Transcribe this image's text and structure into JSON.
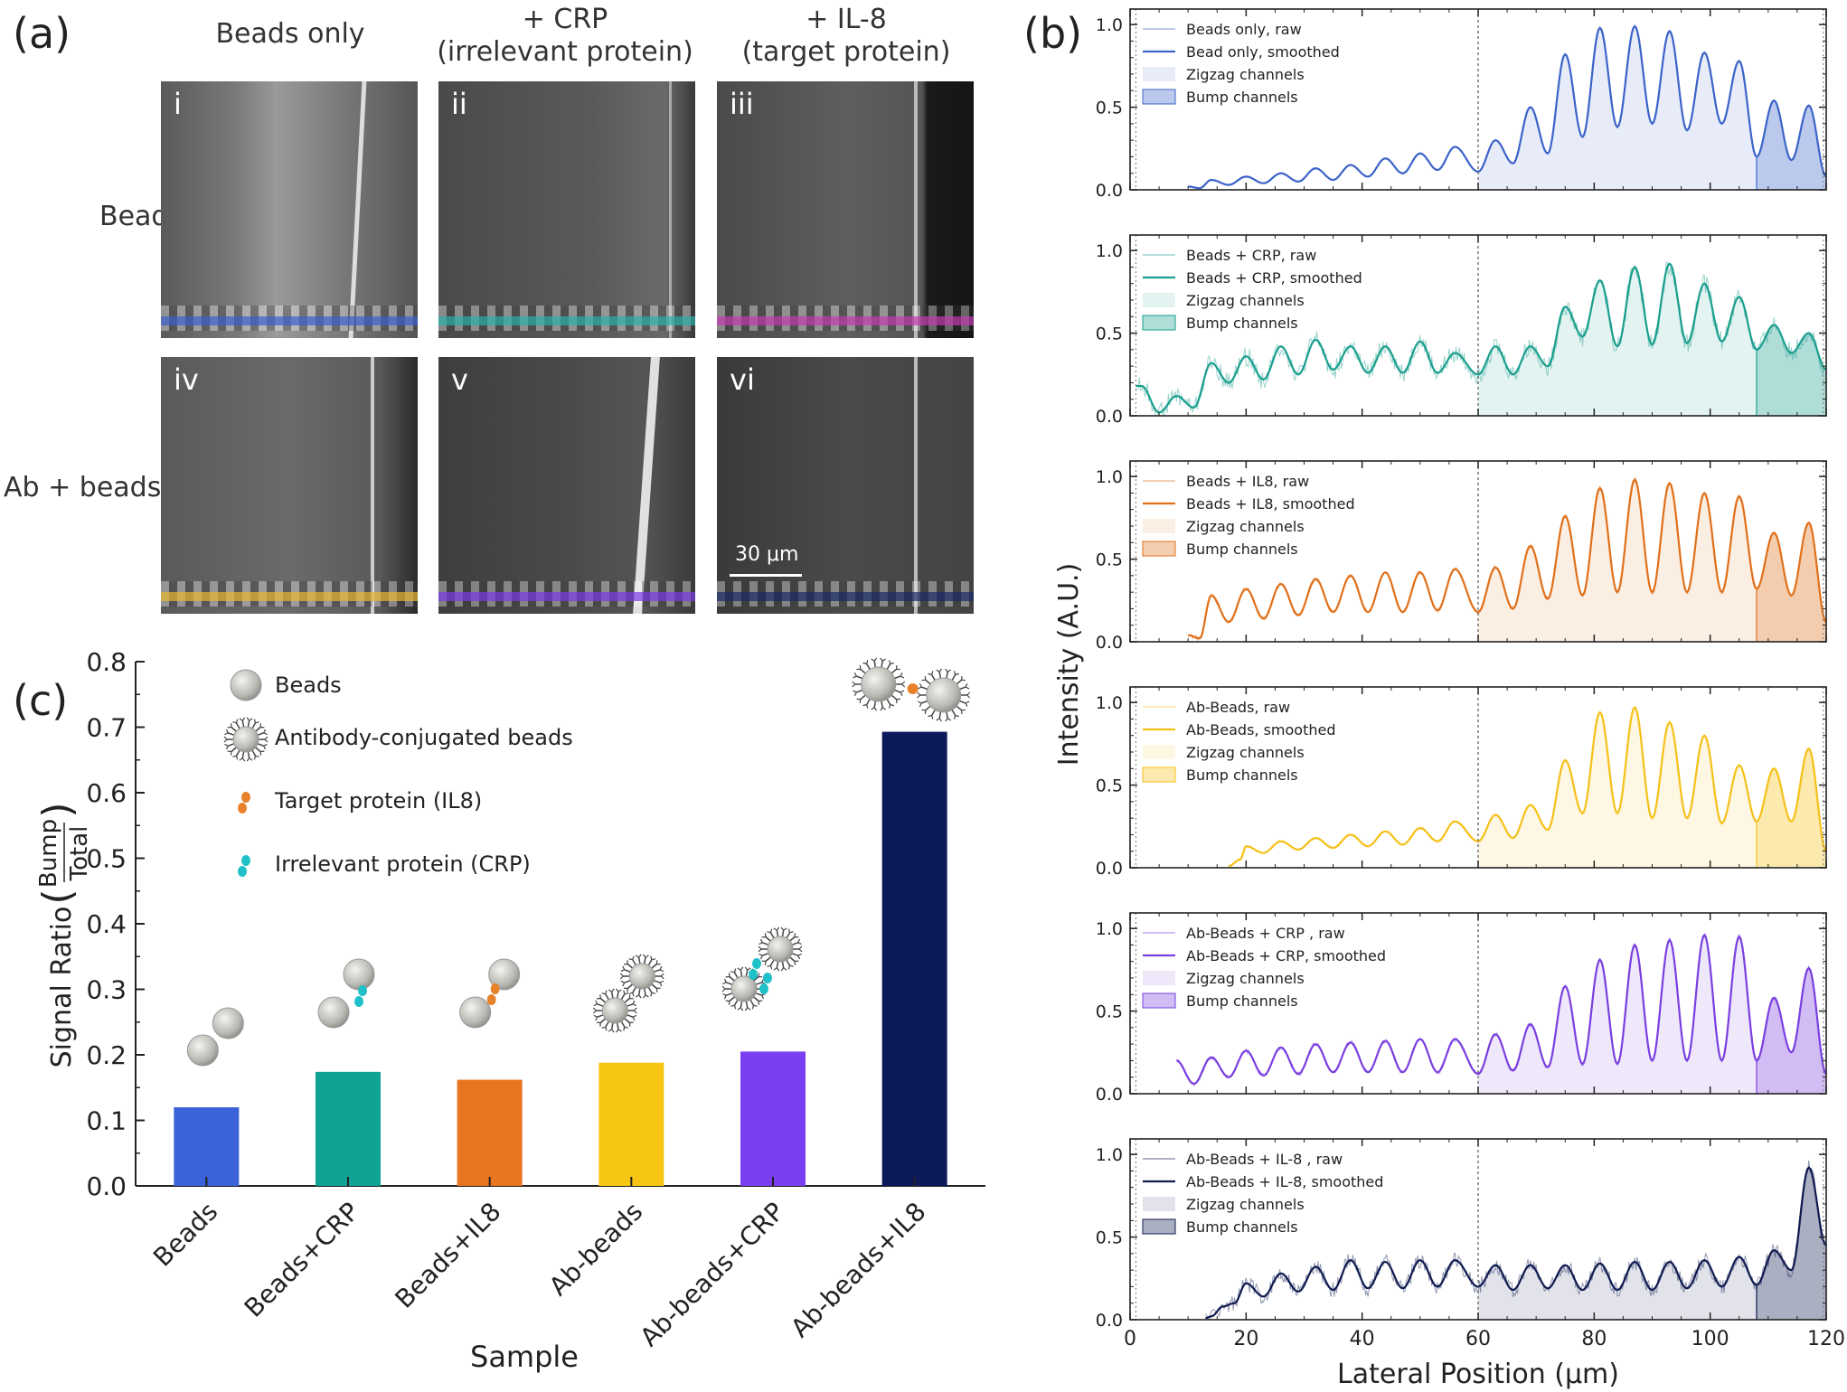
{
  "panel_labels": {
    "a": "(a)",
    "b": "(b)",
    "c": "(c)"
  },
  "panel_a": {
    "column_headers": [
      "Beads only",
      "+ CRP\n(irrelevant protein)",
      "+ IL-8\n(target protein)"
    ],
    "row_headers": [
      "Beads",
      "Ab + beads"
    ],
    "images": [
      {
        "label": "i",
        "stripe_color": "#3a5fcd"
      },
      {
        "label": "ii",
        "stripe_color": "#2ab0a8"
      },
      {
        "label": "iii",
        "stripe_color": "#c23ab0"
      },
      {
        "label": "iv",
        "stripe_color": "#e8b830"
      },
      {
        "label": "v",
        "stripe_color": "#7a3ae8"
      },
      {
        "label": "vi",
        "stripe_color": "#1a2a6a"
      }
    ],
    "scale_bar": "30 μm"
  },
  "chart_data": [
    {
      "type": "bar",
      "panel": "c",
      "categories": [
        "Beads",
        "Beads+CRP",
        "Beads+IL8",
        "Ab-beads",
        "Ab-beads+CRP",
        "Ab-beads+IL8"
      ],
      "values": [
        0.12,
        0.174,
        0.162,
        0.188,
        0.205,
        0.693
      ],
      "colors": [
        "#3b63d9",
        "#0fa396",
        "#e87520",
        "#f7c514",
        "#7b3ff2",
        "#0c1a5c"
      ],
      "xlabel": "Sample",
      "ylabel": "Signal Ratio",
      "ylabel_frac_num": "Bump",
      "ylabel_frac_den": "Total",
      "ylim": [
        0,
        0.8
      ],
      "yticks": [
        "0.0",
        "0.1",
        "0.2",
        "0.3",
        "0.4",
        "0.5",
        "0.6",
        "0.7",
        "0.8"
      ],
      "legend": [
        {
          "icon": "bead",
          "label": "Beads"
        },
        {
          "icon": "ab-bead",
          "label": "Antibody-conjugated beads"
        },
        {
          "icon": "target-protein",
          "label": "Target protein (IL8)",
          "color": "#e8822a"
        },
        {
          "icon": "irrelevant-protein",
          "label": "Irrelevant protein (CRP)",
          "color": "#1fc0c8"
        }
      ]
    },
    {
      "type": "line",
      "panel": "b",
      "xlabel": "Lateral Position (μm)",
      "ylabel": "Intensity (A.U.)",
      "xlim": [
        0,
        120
      ],
      "ylim": [
        0,
        1.05
      ],
      "xticks": [
        "0",
        "20",
        "40",
        "60",
        "80",
        "100",
        "120"
      ],
      "yticks": [
        "0.0",
        "0.5",
        "1.0"
      ],
      "divider_x": 60,
      "bump_start_x": 108,
      "series": [
        {
          "raw_label": "Beads only, raw",
          "smooth_label": "Bead only, smoothed",
          "zigzag_label": "Zigzag channels",
          "bump_label": "Bump channels",
          "color": "#3b63c8",
          "noise": 0.005,
          "start": 10,
          "peaks": [
            [
              10,
              0.02
            ],
            [
              14,
              0.06
            ],
            [
              20,
              0.08
            ],
            [
              26,
              0.1
            ],
            [
              32,
              0.13
            ],
            [
              38,
              0.15
            ],
            [
              44,
              0.19
            ],
            [
              50,
              0.22
            ],
            [
              56,
              0.26
            ],
            [
              63,
              0.3
            ],
            [
              69,
              0.5
            ],
            [
              75,
              0.82
            ],
            [
              81,
              0.98
            ],
            [
              87,
              0.99
            ],
            [
              93,
              0.96
            ],
            [
              99,
              0.83
            ],
            [
              105,
              0.78
            ],
            [
              111,
              0.54
            ],
            [
              117,
              0.51
            ]
          ],
          "valleys": [
            [
              12,
              0.01
            ],
            [
              17,
              0.03
            ],
            [
              23,
              0.04
            ],
            [
              29,
              0.05
            ],
            [
              35,
              0.06
            ],
            [
              41,
              0.08
            ],
            [
              47,
              0.1
            ],
            [
              53,
              0.12
            ],
            [
              60,
              0.11
            ],
            [
              66,
              0.16
            ],
            [
              72,
              0.22
            ],
            [
              78,
              0.32
            ],
            [
              84,
              0.38
            ],
            [
              90,
              0.4
            ],
            [
              96,
              0.36
            ],
            [
              102,
              0.4
            ],
            [
              108,
              0.2
            ],
            [
              114,
              0.18
            ],
            [
              120,
              0.08
            ]
          ]
        },
        {
          "raw_label": "Beads + CRP, raw",
          "smooth_label": "Beads + CRP, smoothed",
          "zigzag_label": "Zigzag channels",
          "bump_label": "Bump channels",
          "color": "#1a9e8e",
          "noise": 0.06,
          "start": 1,
          "peaks": [
            [
              2,
              0.18
            ],
            [
              8,
              0.12
            ],
            [
              14,
              0.32
            ],
            [
              20,
              0.36
            ],
            [
              26,
              0.42
            ],
            [
              32,
              0.46
            ],
            [
              38,
              0.42
            ],
            [
              44,
              0.42
            ],
            [
              50,
              0.45
            ],
            [
              56,
              0.38
            ],
            [
              63,
              0.42
            ],
            [
              69,
              0.42
            ],
            [
              75,
              0.66
            ],
            [
              81,
              0.82
            ],
            [
              87,
              0.9
            ],
            [
              93,
              0.92
            ],
            [
              99,
              0.8
            ],
            [
              105,
              0.72
            ],
            [
              111,
              0.55
            ],
            [
              117,
              0.5
            ]
          ],
          "valleys": [
            [
              5,
              0.02
            ],
            [
              11,
              0.05
            ],
            [
              17,
              0.2
            ],
            [
              23,
              0.22
            ],
            [
              29,
              0.25
            ],
            [
              35,
              0.28
            ],
            [
              41,
              0.26
            ],
            [
              47,
              0.26
            ],
            [
              53,
              0.26
            ],
            [
              60,
              0.25
            ],
            [
              66,
              0.25
            ],
            [
              72,
              0.3
            ],
            [
              78,
              0.48
            ],
            [
              84,
              0.42
            ],
            [
              90,
              0.43
            ],
            [
              96,
              0.44
            ],
            [
              102,
              0.45
            ],
            [
              108,
              0.4
            ],
            [
              114,
              0.38
            ],
            [
              120,
              0.28
            ]
          ]
        },
        {
          "raw_label": "Beads + IL8, raw",
          "smooth_label": "Beads + IL8, smoothed",
          "zigzag_label": "Zigzag channels",
          "bump_label": "Bump channels",
          "color": "#e0701a",
          "noise": 0.015,
          "start": 10,
          "peaks": [
            [
              10,
              0.04
            ],
            [
              14,
              0.28
            ],
            [
              20,
              0.32
            ],
            [
              26,
              0.35
            ],
            [
              32,
              0.38
            ],
            [
              38,
              0.4
            ],
            [
              44,
              0.42
            ],
            [
              50,
              0.42
            ],
            [
              56,
              0.44
            ],
            [
              63,
              0.45
            ],
            [
              69,
              0.58
            ],
            [
              75,
              0.76
            ],
            [
              81,
              0.93
            ],
            [
              87,
              0.98
            ],
            [
              93,
              0.96
            ],
            [
              99,
              0.9
            ],
            [
              105,
              0.88
            ],
            [
              111,
              0.66
            ],
            [
              117,
              0.72
            ]
          ],
          "valleys": [
            [
              12,
              0.02
            ],
            [
              17,
              0.12
            ],
            [
              23,
              0.14
            ],
            [
              29,
              0.16
            ],
            [
              35,
              0.18
            ],
            [
              41,
              0.18
            ],
            [
              47,
              0.18
            ],
            [
              53,
              0.19
            ],
            [
              60,
              0.18
            ],
            [
              66,
              0.2
            ],
            [
              72,
              0.26
            ],
            [
              78,
              0.28
            ],
            [
              84,
              0.3
            ],
            [
              90,
              0.3
            ],
            [
              96,
              0.3
            ],
            [
              102,
              0.3
            ],
            [
              108,
              0.32
            ],
            [
              114,
              0.28
            ],
            [
              120,
              0.12
            ]
          ]
        },
        {
          "raw_label": "Ab-Beads, raw",
          "smooth_label": "Ab-Beads, smoothed",
          "zigzag_label": "Zigzag channels",
          "bump_label": "Bump channels",
          "color": "#f5c018",
          "noise": 0.008,
          "start": 17,
          "peaks": [
            [
              17,
              0.01
            ],
            [
              20,
              0.13
            ],
            [
              26,
              0.16
            ],
            [
              32,
              0.18
            ],
            [
              38,
              0.2
            ],
            [
              44,
              0.22
            ],
            [
              50,
              0.24
            ],
            [
              56,
              0.28
            ],
            [
              63,
              0.32
            ],
            [
              69,
              0.38
            ],
            [
              75,
              0.65
            ],
            [
              81,
              0.94
            ],
            [
              87,
              0.97
            ],
            [
              93,
              0.88
            ],
            [
              99,
              0.8
            ],
            [
              105,
              0.62
            ],
            [
              111,
              0.6
            ],
            [
              117,
              0.72
            ]
          ],
          "valleys": [
            [
              19,
              0.05
            ],
            [
              23,
              0.09
            ],
            [
              29,
              0.11
            ],
            [
              35,
              0.12
            ],
            [
              41,
              0.13
            ],
            [
              47,
              0.14
            ],
            [
              53,
              0.16
            ],
            [
              60,
              0.16
            ],
            [
              66,
              0.18
            ],
            [
              72,
              0.23
            ],
            [
              78,
              0.33
            ],
            [
              84,
              0.33
            ],
            [
              90,
              0.3
            ],
            [
              96,
              0.3
            ],
            [
              102,
              0.27
            ],
            [
              108,
              0.28
            ],
            [
              114,
              0.28
            ],
            [
              120,
              0.1
            ]
          ]
        },
        {
          "raw_label": "Ab-Beads + CRP , raw",
          "smooth_label": "Ab-Beads + CRP, smoothed",
          "zigzag_label": "Zigzag channels",
          "bump_label": "Bump channels",
          "color": "#7a3fe0",
          "noise": 0.015,
          "start": 8,
          "peaks": [
            [
              8,
              0.2
            ],
            [
              14,
              0.22
            ],
            [
              20,
              0.26
            ],
            [
              26,
              0.28
            ],
            [
              32,
              0.3
            ],
            [
              38,
              0.31
            ],
            [
              44,
              0.32
            ],
            [
              50,
              0.33
            ],
            [
              56,
              0.33
            ],
            [
              63,
              0.36
            ],
            [
              69,
              0.42
            ],
            [
              75,
              0.65
            ],
            [
              81,
              0.81
            ],
            [
              87,
              0.9
            ],
            [
              93,
              0.93
            ],
            [
              99,
              0.96
            ],
            [
              105,
              0.95
            ],
            [
              111,
              0.58
            ],
            [
              117,
              0.76
            ]
          ],
          "valleys": [
            [
              11,
              0.06
            ],
            [
              17,
              0.1
            ],
            [
              23,
              0.11
            ],
            [
              29,
              0.12
            ],
            [
              35,
              0.13
            ],
            [
              41,
              0.13
            ],
            [
              47,
              0.13
            ],
            [
              53,
              0.13
            ],
            [
              60,
              0.12
            ],
            [
              66,
              0.14
            ],
            [
              72,
              0.16
            ],
            [
              78,
              0.18
            ],
            [
              84,
              0.18
            ],
            [
              90,
              0.2
            ],
            [
              96,
              0.2
            ],
            [
              102,
              0.2
            ],
            [
              108,
              0.2
            ],
            [
              114,
              0.25
            ],
            [
              120,
              0.12
            ]
          ]
        },
        {
          "raw_label": "Ab-Beads + IL-8 , raw",
          "smooth_label": "Ab-Beads + IL-8, smoothed",
          "zigzag_label": "Zigzag channels",
          "bump_label": "Bump channels",
          "color": "#0f1a50",
          "noise": 0.05,
          "start": 13,
          "peaks": [
            [
              13,
              0.01
            ],
            [
              16,
              0.08
            ],
            [
              20,
              0.22
            ],
            [
              26,
              0.28
            ],
            [
              32,
              0.32
            ],
            [
              38,
              0.36
            ],
            [
              44,
              0.35
            ],
            [
              50,
              0.36
            ],
            [
              56,
              0.36
            ],
            [
              63,
              0.33
            ],
            [
              69,
              0.33
            ],
            [
              75,
              0.33
            ],
            [
              81,
              0.34
            ],
            [
              87,
              0.35
            ],
            [
              93,
              0.35
            ],
            [
              99,
              0.36
            ],
            [
              105,
              0.38
            ],
            [
              111,
              0.42
            ],
            [
              117,
              0.92
            ]
          ],
          "valleys": [
            [
              14,
              0.02
            ],
            [
              18,
              0.1
            ],
            [
              23,
              0.14
            ],
            [
              29,
              0.17
            ],
            [
              35,
              0.18
            ],
            [
              41,
              0.19
            ],
            [
              47,
              0.19
            ],
            [
              53,
              0.2
            ],
            [
              60,
              0.2
            ],
            [
              66,
              0.18
            ],
            [
              72,
              0.19
            ],
            [
              78,
              0.18
            ],
            [
              84,
              0.18
            ],
            [
              90,
              0.18
            ],
            [
              96,
              0.19
            ],
            [
              102,
              0.2
            ],
            [
              108,
              0.21
            ],
            [
              114,
              0.3
            ],
            [
              120,
              0.45
            ]
          ]
        }
      ]
    }
  ]
}
